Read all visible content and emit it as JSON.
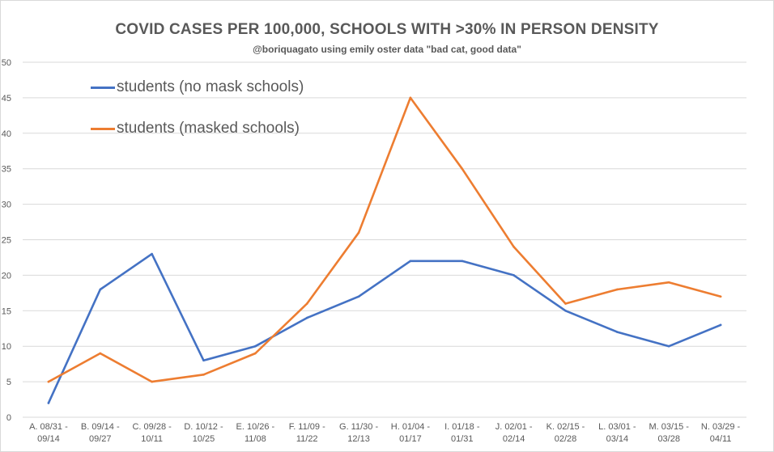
{
  "chart_data": {
    "type": "line",
    "title": "COVID CASES PER 100,000, SCHOOLS WITH >30% IN PERSON DENSITY",
    "subtitle": "@boriquagato using emily oster data \"bad cat, good data\"",
    "categories": [
      [
        "A. 08/31 -",
        "09/14"
      ],
      [
        "B. 09/14 -",
        "09/27"
      ],
      [
        "C. 09/28 -",
        "10/11"
      ],
      [
        "D. 10/12 -",
        "10/25"
      ],
      [
        "E. 10/26 -",
        "11/08"
      ],
      [
        "F. 11/09 -",
        "11/22"
      ],
      [
        "G. 11/30 -",
        "12/13"
      ],
      [
        "H. 01/04 -",
        "01/17"
      ],
      [
        "I. 01/18 -",
        "01/31"
      ],
      [
        "J. 02/01 -",
        "02/14"
      ],
      [
        "K. 02/15 -",
        "02/28"
      ],
      [
        "L. 03/01 -",
        "03/14"
      ],
      [
        "M. 03/15 -",
        "03/28"
      ],
      [
        "N. 03/29 -",
        "04/11"
      ]
    ],
    "series": [
      {
        "name": "students (no mask schools)",
        "color": "#4472c4",
        "values": [
          2,
          18,
          23,
          8,
          10,
          14,
          17,
          22,
          22,
          20,
          15,
          12,
          10,
          13
        ]
      },
      {
        "name": "students (masked schools)",
        "color": "#ed7d31",
        "values": [
          5,
          9,
          5,
          6,
          9,
          16,
          26,
          45,
          35,
          24,
          16,
          18,
          19,
          17
        ]
      }
    ],
    "ylim": [
      0,
      50
    ],
    "yticks": [
      0,
      5,
      10,
      15,
      20,
      25,
      30,
      35,
      40,
      45,
      50
    ],
    "xlabel": "",
    "ylabel": "",
    "grid": true,
    "legend_position": "top-left"
  }
}
